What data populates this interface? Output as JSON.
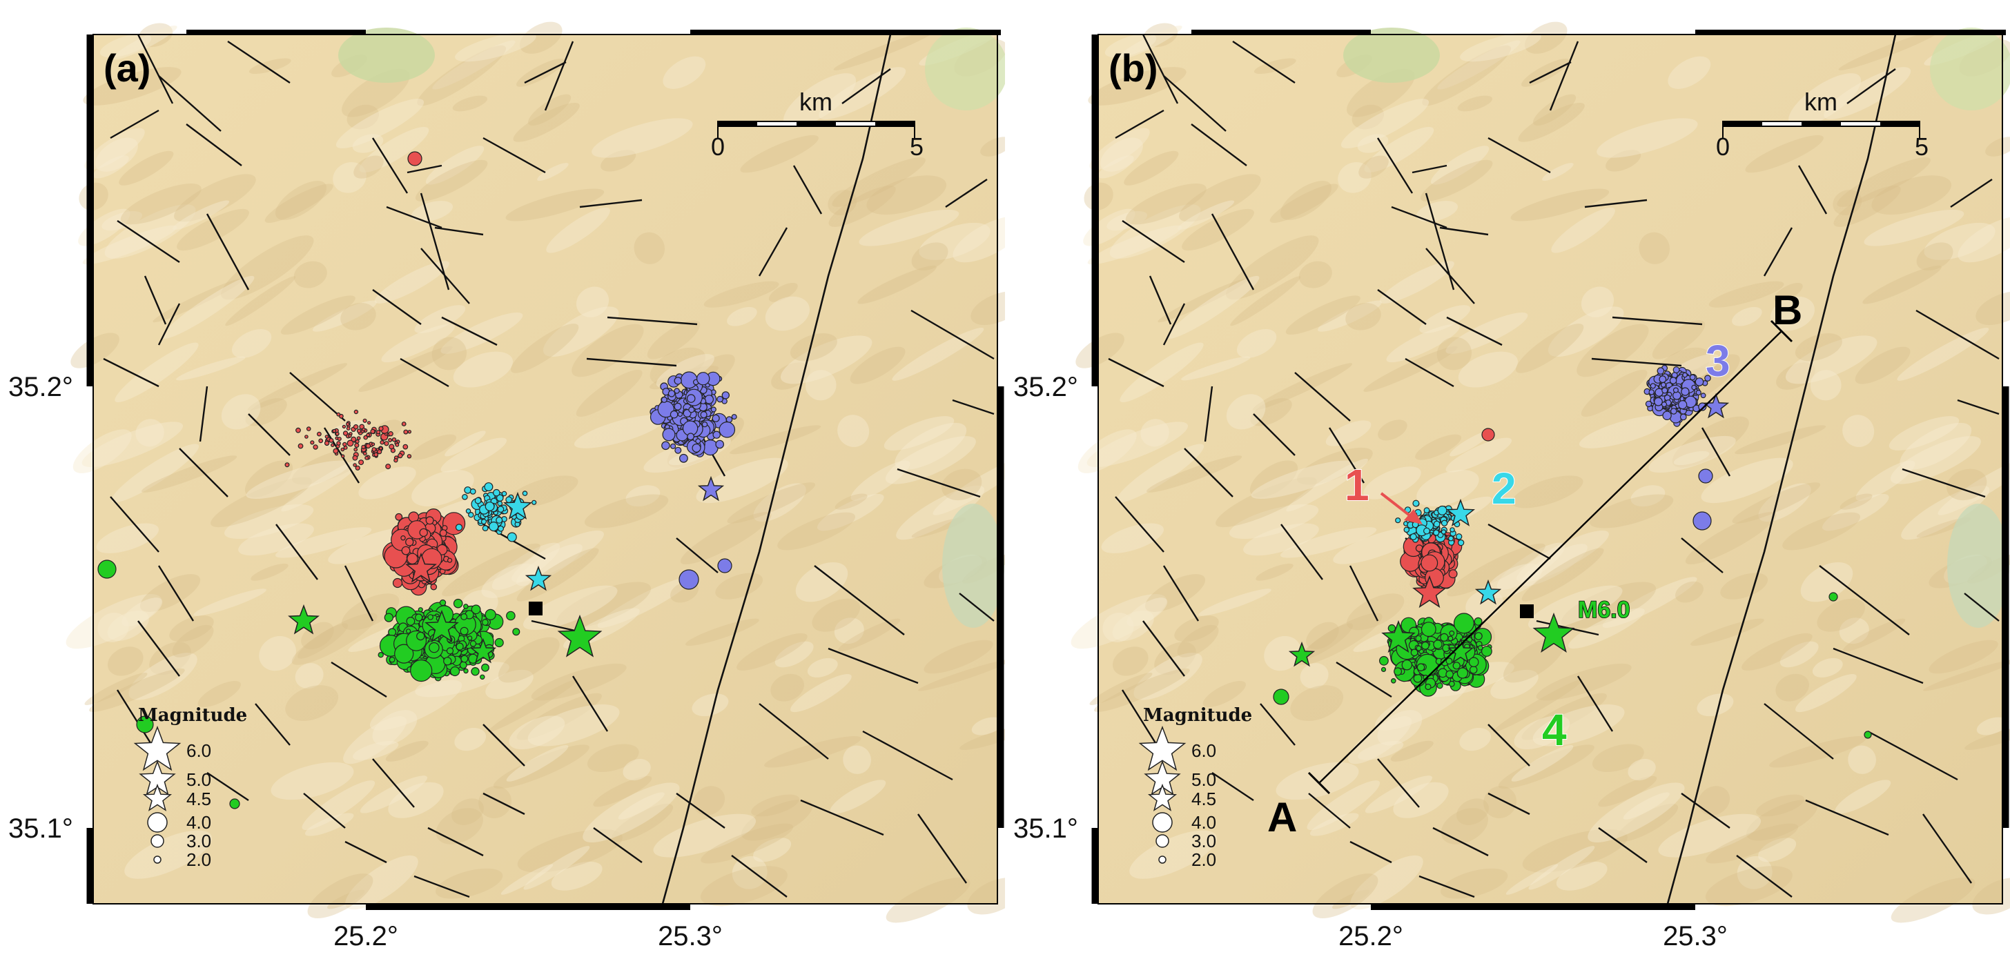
{
  "figure": {
    "y_ticks": [
      "35.2°",
      "35.1°"
    ],
    "x_ticks": [
      "25.2°",
      "25.3°"
    ],
    "x_tick_values": [
      25.2,
      25.3
    ],
    "y_tick_values": [
      35.2,
      35.1
    ],
    "lon_range": [
      25.145,
      25.3
    ],
    "lat_range": [
      35.075,
      35.26
    ]
  },
  "colors": {
    "cluster1": "#e85050",
    "cluster2": "#38d8e8",
    "cluster3": "#7c7ce8",
    "cluster4": "#22cc22",
    "terrain": "#ecd9ad",
    "fault": "#111111"
  },
  "scale_bar": {
    "unit": "km",
    "label_start": "0",
    "label_end": "5"
  },
  "legend": {
    "title": "Magnitude",
    "entries": [
      {
        "label": "6.0",
        "symbol": "star"
      },
      {
        "label": "5.0",
        "symbol": "star"
      },
      {
        "label": "4.5",
        "symbol": "star"
      },
      {
        "label": "4.0",
        "symbol": "circle"
      },
      {
        "label": "3.0",
        "symbol": "circle"
      },
      {
        "label": "2.0",
        "symbol": "circle"
      }
    ]
  },
  "panels": [
    {
      "letter": "(a)",
      "cluster_labels": [],
      "profile": null
    },
    {
      "letter": "(b)",
      "cluster_labels": [
        {
          "text": "1",
          "color_key": "cluster1"
        },
        {
          "text": "2",
          "color_key": "cluster2"
        },
        {
          "text": "3",
          "color_key": "cluster3"
        },
        {
          "text": "4",
          "color_key": "cluster4"
        }
      ],
      "profile": {
        "start": "A",
        "end": "B"
      },
      "mainshock_label": "M6.0"
    }
  ]
}
